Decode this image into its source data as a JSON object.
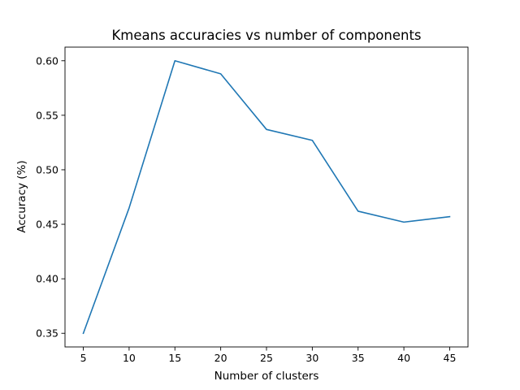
{
  "chart_data": {
    "type": "line",
    "title": "Kmeans accuracies vs number of components",
    "xlabel": "Number of clusters",
    "ylabel": "Accuracy (%)",
    "x": [
      5,
      10,
      15,
      20,
      25,
      30,
      35,
      40,
      45
    ],
    "series": [
      {
        "values": [
          0.35,
          0.465,
          0.6,
          0.588,
          0.537,
          0.527,
          0.462,
          0.452,
          0.457
        ],
        "color": "#1f77b4"
      }
    ],
    "xlim": [
      3,
      47
    ],
    "ylim": [
      0.3375,
      0.6125
    ],
    "xticks": [
      5,
      10,
      15,
      20,
      25,
      30,
      35,
      40,
      45
    ],
    "xtick_labels": [
      "5",
      "10",
      "15",
      "20",
      "25",
      "30",
      "35",
      "40",
      "45"
    ],
    "yticks": [
      0.35,
      0.4,
      0.45,
      0.5,
      0.55,
      0.6
    ],
    "ytick_labels": [
      "0.35",
      "0.40",
      "0.45",
      "0.50",
      "0.55",
      "0.60"
    ],
    "grid": false,
    "legend": false
  }
}
